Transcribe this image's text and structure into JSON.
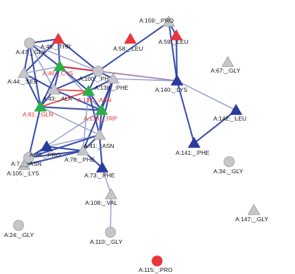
{
  "colors": {
    "gray_node": "#c6c6c9",
    "gray_stroke": "#9a9aa0",
    "blue_node": "#2a3c9e",
    "red_node": "#e8363a",
    "green_node": "#2cb046",
    "blue_edge": "#3347a8",
    "light_edge": "#8e98cc",
    "red_edge": "#e8363a",
    "label_text": "#111111",
    "label_red": "#e8282b"
  },
  "nodes": [
    {
      "id": "A:159:_:PRO",
      "shape": "triangle",
      "color": "gray",
      "label": "A:159:_:PRO"
    },
    {
      "id": "A:59:_:LEU",
      "shape": "triangle",
      "color": "red",
      "label": "A:59:_:LEU"
    },
    {
      "id": "A:58:_:LEU",
      "shape": "triangle",
      "color": "red",
      "label": "A:58:_:LEU"
    },
    {
      "id": "A:49:_:THR",
      "shape": "triangle",
      "color": "red",
      "label": "A:49:_:THR"
    },
    {
      "id": "A:47:_:GLY",
      "shape": "circle",
      "color": "gray",
      "label": "A:47:_:GLY"
    },
    {
      "id": "A:67:_:GLY",
      "shape": "triangle",
      "color": "gray",
      "label": "A:67:_:GLY"
    },
    {
      "id": "A:46:_:CYS",
      "shape": "triangle",
      "color": "green",
      "label": "A:46:_:CYS",
      "red_label": true
    },
    {
      "id": "A:44:_:SER",
      "shape": "triangle",
      "color": "gray",
      "label": "A:44:_:SER"
    },
    {
      "id": "A:100:_:PHE",
      "shape": "circle",
      "color": "gray",
      "label": "A:100:_:PH"
    },
    {
      "id": "A:138:_:PHE",
      "shape": "triangle",
      "color": "gray",
      "label": "A:138:_:PHE"
    },
    {
      "id": "A:140:_:LYS",
      "shape": "triangle",
      "color": "blue",
      "label": "A:140:_:LYS"
    },
    {
      "id": "A:43:_:ALA",
      "shape": "triangle",
      "color": "gray",
      "label": "A:43:_:ALA"
    },
    {
      "id": "A:137:_:ASN",
      "shape": "triangle",
      "color": "green",
      "label": "A:137:_:ASN",
      "red_label": true
    },
    {
      "id": "A:81:_:GLN",
      "shape": "triangle",
      "color": "green",
      "label": "A:81:_:GLN",
      "red_label": true
    },
    {
      "id": "A:139:_:TRP",
      "shape": "triangle",
      "color": "green",
      "label": "A:139:_:TRP",
      "red_label": true
    },
    {
      "id": "A:142:_:LEU",
      "shape": "triangle",
      "color": "blue",
      "label": "A:142:_:LEU"
    },
    {
      "id": "A:41:_:ASN",
      "shape": "triangle",
      "color": "gray",
      "label": "A:41:_:ASN"
    },
    {
      "id": "A:141:_:PHE",
      "shape": "triangle",
      "color": "blue",
      "label": "A:141:_:PHE"
    },
    {
      "id": "A:74:_:PRO",
      "shape": "triangle",
      "color": "blue",
      "label": "A:74:_:PRO"
    },
    {
      "id": "A:7_:_:ASN",
      "shape": "circle",
      "color": "gray",
      "label": "A:7_:_:ASN"
    },
    {
      "id": "A:78:_:PHE",
      "shape": "triangle",
      "color": "gray",
      "label": "A:78:_:PHE"
    },
    {
      "id": "A:105:_:LYS",
      "shape": "triangle",
      "color": "gray",
      "label": "A:105:_:LYS"
    },
    {
      "id": "A:34:_:GLY",
      "shape": "circle",
      "color": "gray",
      "label": "A:34:_:GLY"
    },
    {
      "id": "A:73:_:PHE",
      "shape": "triangle",
      "color": "blue",
      "label": "A:73:_:PHE"
    },
    {
      "id": "A:108:_:VAL",
      "shape": "triangle",
      "color": "gray",
      "label": "A:108:_:VAL"
    },
    {
      "id": "A:147:_:GLY",
      "shape": "triangle",
      "color": "gray",
      "label": "A:147:_:GLY"
    },
    {
      "id": "A:24:_:GLY",
      "shape": "circle",
      "color": "gray",
      "label": "A:24:_:GLY"
    },
    {
      "id": "A:110:_:GLY",
      "shape": "circle",
      "color": "gray",
      "label": "A:110:_:GLY"
    },
    {
      "id": "A:115:_:PRO",
      "shape": "circle",
      "color": "red",
      "label": "A:115:_:PRO"
    }
  ],
  "edges": [
    {
      "from": "A:159:_:PRO",
      "to": "A:100:_:PHE",
      "style": "blue"
    },
    {
      "from": "A:159:_:PRO",
      "to": "A:59:_:LEU",
      "style": "blue"
    },
    {
      "from": "A:159:_:PRO",
      "to": "A:140:_:LYS",
      "style": "blue"
    },
    {
      "from": "A:59:_:LEU",
      "to": "A:140:_:LYS",
      "style": "blue"
    },
    {
      "from": "A:49:_:THR",
      "to": "A:47:_:GLY",
      "style": "blue"
    },
    {
      "from": "A:49:_:THR",
      "to": "A:100:_:PHE",
      "style": "blue"
    },
    {
      "from": "A:49:_:THR",
      "to": "A:44:_:SER",
      "style": "blue"
    },
    {
      "from": "A:49:_:THR",
      "to": "A:46:_:CYS",
      "style": "blue"
    },
    {
      "from": "A:47:_:GLY",
      "to": "A:46:_:CYS",
      "style": "blue"
    },
    {
      "from": "A:47:_:GLY",
      "to": "A:44:_:SER",
      "style": "blue"
    },
    {
      "from": "A:47:_:GLY",
      "to": "A:43:_:ALA",
      "style": "light"
    },
    {
      "from": "A:47:_:GLY",
      "to": "A:81:_:GLN",
      "style": "blue"
    },
    {
      "from": "A:47:_:GLY",
      "to": "A:100:_:PHE",
      "style": "light"
    },
    {
      "from": "A:46:_:CYS",
      "to": "A:44:_:SER",
      "style": "light"
    },
    {
      "from": "A:46:_:CYS",
      "to": "A:43:_:ALA",
      "style": "blue"
    },
    {
      "from": "A:46:_:CYS",
      "to": "A:137:_:ASN",
      "style": "blue"
    },
    {
      "from": "A:46:_:CYS",
      "to": "A:100:_:PHE",
      "style": "blue"
    },
    {
      "from": "A:46:_:CYS",
      "to": "A:81:_:GLN",
      "style": "blue"
    },
    {
      "from": "A:46:_:CYS",
      "to": "A:139:_:TRP",
      "style": "light"
    },
    {
      "from": "A:46:_:CYS",
      "to": "A:140:_:LYS",
      "style": "red"
    },
    {
      "from": "A:44:_:SER",
      "to": "A:43:_:ALA",
      "style": "blue"
    },
    {
      "from": "A:44:_:SER",
      "to": "A:81:_:GLN",
      "style": "blue"
    },
    {
      "from": "A:43:_:ALA",
      "to": "A:137:_:ASN",
      "style": "red"
    },
    {
      "from": "A:43:_:ALA",
      "to": "A:81:_:GLN",
      "style": "blue"
    },
    {
      "from": "A:43:_:ALA",
      "to": "A:139:_:TRP",
      "style": "blue"
    },
    {
      "from": "A:81:_:GLN",
      "to": "A:137:_:ASN",
      "style": "red"
    },
    {
      "from": "A:81:_:GLN",
      "to": "A:139:_:TRP",
      "style": "blue"
    },
    {
      "from": "A:81:_:GLN",
      "to": "A:7_:_:ASN",
      "style": "blue"
    },
    {
      "from": "A:81:_:GLN",
      "to": "A:41:_:ASN",
      "style": "light"
    },
    {
      "from": "A:137:_:ASN",
      "to": "A:139:_:TRP",
      "style": "blue"
    },
    {
      "from": "A:137:_:ASN",
      "to": "A:100:_:PHE",
      "style": "blue"
    },
    {
      "from": "A:137:_:ASN",
      "to": "A:138:_:PHE",
      "style": "blue"
    },
    {
      "from": "A:137:_:ASN",
      "to": "A:41:_:ASN",
      "style": "blue"
    },
    {
      "from": "A:137:_:ASN",
      "to": "A:78:_:PHE",
      "style": "light"
    },
    {
      "from": "A:139:_:TRP",
      "to": "A:41:_:ASN",
      "style": "blue"
    },
    {
      "from": "A:139:_:TRP",
      "to": "A:138:_:PHE",
      "style": "blue"
    },
    {
      "from": "A:139:_:TRP",
      "to": "A:7_:_:ASN",
      "style": "light"
    },
    {
      "from": "A:138:_:PHE",
      "to": "A:140:_:LYS",
      "style": "light"
    },
    {
      "from": "A:138:_:PHE",
      "to": "A:100:_:PHE",
      "style": "blue"
    },
    {
      "from": "A:138:_:PHE",
      "to": "A:41:_:ASN",
      "style": "blue"
    },
    {
      "from": "A:138:_:PHE",
      "to": "A:78:_:PHE",
      "style": "blue"
    },
    {
      "from": "A:100:_:PHE",
      "to": "A:140:_:LYS",
      "style": "light"
    },
    {
      "from": "A:100:_:PHE",
      "to": "A:43:_:ALA",
      "style": "blue"
    },
    {
      "from": "A:140:_:LYS",
      "to": "A:142:_:LEU",
      "style": "light"
    },
    {
      "from": "A:140:_:LYS",
      "to": "A:141:_:PHE",
      "style": "blue"
    },
    {
      "from": "A:142:_:LEU",
      "to": "A:141:_:PHE",
      "style": "blue"
    },
    {
      "from": "A:41:_:ASN",
      "to": "A:78:_:PHE",
      "style": "blue"
    },
    {
      "from": "A:41:_:ASN",
      "to": "A:73:_:PHE",
      "style": "blue"
    },
    {
      "from": "A:41:_:ASN",
      "to": "A:74:_:PRO",
      "style": "light"
    },
    {
      "from": "A:41:_:ASN",
      "to": "A:7_:_:ASN",
      "style": "blue"
    },
    {
      "from": "A:78:_:PHE",
      "to": "A:73:_:PHE",
      "style": "blue"
    },
    {
      "from": "A:78:_:PHE",
      "to": "A:74:_:PRO",
      "style": "blue"
    },
    {
      "from": "A:78:_:PHE",
      "to": "A:7_:_:ASN",
      "style": "blue"
    },
    {
      "from": "A:78:_:PHE",
      "to": "A:105:_:LYS",
      "style": "blue"
    },
    {
      "from": "A:74:_:PRO",
      "to": "A:7_:_:ASN",
      "style": "blue"
    },
    {
      "from": "A:7_:_:ASN",
      "to": "A:105:_:LYS",
      "style": "light"
    },
    {
      "from": "A:73:_:PHE",
      "to": "A:108:_:VAL",
      "style": "light"
    },
    {
      "from": "A:108:_:VAL",
      "to": "A:110:_:GLY",
      "style": "light"
    },
    {
      "from": "A:74:_:PRO",
      "to": "A:105:_:LYS",
      "style": "light"
    }
  ]
}
